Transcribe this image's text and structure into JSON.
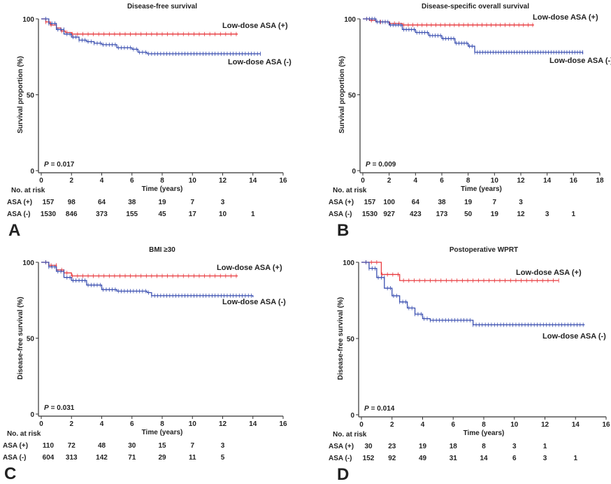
{
  "chart_data": [
    {
      "type": "line",
      "panel_label": "A",
      "title": "Disease-free survival",
      "xlabel": "Time (years)",
      "ylabel": "Survival proportion (%)",
      "xlim": [
        0,
        16
      ],
      "xticks": [
        0,
        2,
        4,
        6,
        8,
        10,
        12,
        14,
        16
      ],
      "ylim": [
        0,
        100
      ],
      "yticks": [
        0,
        50,
        100
      ],
      "p_symbol": "P",
      "p_text": "= 0.017",
      "series": [
        {
          "name": "Low-dose ASA (+)",
          "color": "#e8383d",
          "points": [
            [
              0,
              100
            ],
            [
              0.3,
              98
            ],
            [
              0.6,
              96
            ],
            [
              1,
              94
            ],
            [
              1.3,
              92
            ],
            [
              1.6,
              91
            ],
            [
              2,
              90
            ],
            [
              13,
              90
            ]
          ]
        },
        {
          "name": "Low-dose ASA (-)",
          "color": "#3a4fb0",
          "points": [
            [
              0,
              100
            ],
            [
              0.5,
              97
            ],
            [
              1,
              93
            ],
            [
              1.5,
              90
            ],
            [
              2,
              88
            ],
            [
              2.5,
              86
            ],
            [
              3,
              85
            ],
            [
              3.5,
              84
            ],
            [
              4,
              83
            ],
            [
              5,
              81
            ],
            [
              6,
              80
            ],
            [
              6.4,
              78
            ],
            [
              7,
              77
            ],
            [
              14.5,
              77
            ]
          ]
        }
      ],
      "risk_table": {
        "header": "No. at risk",
        "rows": [
          {
            "label": "ASA (+)",
            "values": [
              "157",
              "98",
              "64",
              "38",
              "19",
              "7",
              "3"
            ]
          },
          {
            "label": "ASA (-)",
            "values": [
              "1530",
              "846",
              "373",
              "155",
              "45",
              "17",
              "10",
              "1"
            ]
          }
        ]
      }
    },
    {
      "type": "line",
      "panel_label": "B",
      "title": "Disease-specific overall survival",
      "xlabel": "Time (years)",
      "ylabel": "Survival proportion (%)",
      "xlim": [
        0,
        18
      ],
      "xticks": [
        0,
        2,
        4,
        6,
        8,
        10,
        12,
        14,
        16,
        18
      ],
      "ylim": [
        0,
        100
      ],
      "yticks": [
        0,
        50,
        100
      ],
      "p_symbol": "P",
      "p_text": "= 0.009",
      "series": [
        {
          "name": "Low-dose ASA (+)",
          "color": "#e8383d",
          "points": [
            [
              0,
              100
            ],
            [
              0.5,
              99
            ],
            [
              1,
              98
            ],
            [
              2,
              97
            ],
            [
              3,
              96
            ],
            [
              13,
              96
            ]
          ]
        },
        {
          "name": "Low-dose ASA (-)",
          "color": "#3a4fb0",
          "points": [
            [
              0,
              100
            ],
            [
              1,
              98
            ],
            [
              2,
              96
            ],
            [
              3,
              93
            ],
            [
              4,
              91
            ],
            [
              5,
              89
            ],
            [
              6,
              87
            ],
            [
              7,
              84
            ],
            [
              8,
              82
            ],
            [
              8.5,
              78
            ],
            [
              9,
              78
            ],
            [
              16.7,
              77
            ]
          ]
        }
      ],
      "risk_table": {
        "header": "No. at risk",
        "rows": [
          {
            "label": "ASA (+)",
            "values": [
              "157",
              "100",
              "64",
              "38",
              "19",
              "7",
              "3"
            ]
          },
          {
            "label": "ASA (-)",
            "values": [
              "1530",
              "927",
              "423",
              "173",
              "50",
              "19",
              "12",
              "3",
              "1"
            ]
          }
        ]
      }
    },
    {
      "type": "line",
      "panel_label": "C",
      "title": "BMI ≥30",
      "xlabel": "Time (years)",
      "ylabel": "Disease-free survival (%)",
      "xlim": [
        0,
        16
      ],
      "xticks": [
        0,
        2,
        4,
        6,
        8,
        10,
        12,
        14,
        16
      ],
      "ylim": [
        0,
        100
      ],
      "yticks": [
        0,
        50,
        100
      ],
      "p_symbol": "P",
      "p_text": "= 0.031",
      "series": [
        {
          "name": "Low-dose ASA (+)",
          "color": "#e8383d",
          "points": [
            [
              0,
              100
            ],
            [
              0.5,
              98
            ],
            [
              1,
              95
            ],
            [
              1.5,
              93
            ],
            [
              2,
              91
            ],
            [
              13,
              91
            ]
          ]
        },
        {
          "name": "Low-dose ASA (-)",
          "color": "#3a4fb0",
          "points": [
            [
              0,
              100
            ],
            [
              0.5,
              97
            ],
            [
              1,
              94
            ],
            [
              1.5,
              90
            ],
            [
              2,
              88
            ],
            [
              3,
              85
            ],
            [
              4,
              82
            ],
            [
              5,
              81
            ],
            [
              6,
              81
            ],
            [
              7,
              80
            ],
            [
              7.3,
              78
            ],
            [
              14,
              77
            ]
          ]
        }
      ],
      "risk_table": {
        "header": "No. at risk",
        "rows": [
          {
            "label": "ASA (+)",
            "values": [
              "110",
              "72",
              "48",
              "30",
              "15",
              "7",
              "3"
            ]
          },
          {
            "label": "ASA (-)",
            "values": [
              "604",
              "313",
              "142",
              "71",
              "29",
              "11",
              "5"
            ]
          }
        ]
      }
    },
    {
      "type": "line",
      "panel_label": "D",
      "title": "Postoperative WPRT",
      "xlabel": "Time (years)",
      "ylabel": "Disease-free survival (%)",
      "xlim": [
        0,
        16
      ],
      "xticks": [
        0,
        2,
        4,
        6,
        8,
        10,
        12,
        14,
        16
      ],
      "ylim": [
        0,
        100
      ],
      "yticks": [
        0,
        50,
        100
      ],
      "p_symbol": "P",
      "p_text": "= 0.014",
      "series": [
        {
          "name": "Low-dose ASA (+)",
          "color": "#e8383d",
          "points": [
            [
              0,
              100
            ],
            [
              1.2,
              100
            ],
            [
              1.3,
              92
            ],
            [
              2.4,
              92
            ],
            [
              2.5,
              88
            ],
            [
              12.9,
              88
            ]
          ]
        },
        {
          "name": "Low-dose ASA (-)",
          "color": "#3a4fb0",
          "points": [
            [
              0,
              100
            ],
            [
              0.5,
              96
            ],
            [
              1,
              90
            ],
            [
              1.5,
              83
            ],
            [
              2,
              78
            ],
            [
              2.5,
              74
            ],
            [
              3,
              70
            ],
            [
              3.5,
              66
            ],
            [
              4,
              63
            ],
            [
              4.5,
              62
            ],
            [
              7,
              62
            ],
            [
              7.3,
              59
            ],
            [
              14.6,
              59
            ]
          ]
        }
      ],
      "risk_table": {
        "header": "No. at risk",
        "rows": [
          {
            "label": "ASA (+)",
            "values": [
              "30",
              "23",
              "19",
              "18",
              "8",
              "3",
              "1"
            ]
          },
          {
            "label": "ASA (-)",
            "values": [
              "152",
              "92",
              "49",
              "31",
              "14",
              "6",
              "3",
              "1"
            ]
          }
        ]
      }
    }
  ]
}
